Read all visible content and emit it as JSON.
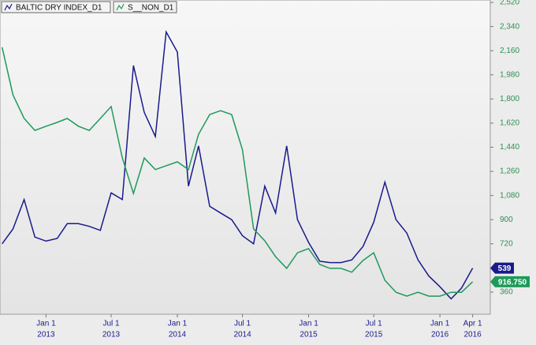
{
  "chart_data": {
    "type": "line",
    "x": [
      "2012-09-01",
      "2012-10-01",
      "2012-11-01",
      "2012-12-01",
      "2013-01-01",
      "2013-02-01",
      "2013-03-01",
      "2013-04-01",
      "2013-05-01",
      "2013-06-01",
      "2013-07-01",
      "2013-08-01",
      "2013-09-01",
      "2013-10-01",
      "2013-11-01",
      "2013-12-01",
      "2014-01-01",
      "2014-02-01",
      "2014-03-01",
      "2014-04-01",
      "2014-05-01",
      "2014-06-01",
      "2014-07-01",
      "2014-08-01",
      "2014-09-01",
      "2014-10-01",
      "2014-11-01",
      "2014-12-01",
      "2015-01-01",
      "2015-02-01",
      "2015-03-01",
      "2015-04-01",
      "2015-05-01",
      "2015-06-01",
      "2015-07-01",
      "2015-08-01",
      "2015-09-01",
      "2015-10-01",
      "2015-11-01",
      "2015-12-01",
      "2016-01-01",
      "2016-02-01",
      "2016-03-01",
      "2016-04-01"
    ],
    "series": [
      {
        "name": "BALTIC DRY INDEX_D1",
        "color": "#1a1a8c",
        "values": [
          720,
          830,
          1050,
          770,
          740,
          760,
          870,
          870,
          850,
          820,
          1100,
          1050,
          2050,
          1700,
          1520,
          2300,
          2150,
          1150,
          1450,
          1000,
          950,
          900,
          780,
          720,
          1150,
          950,
          1450,
          900,
          730,
          590,
          580,
          580,
          600,
          700,
          880,
          1180,
          900,
          800,
          600,
          480,
          400,
          310,
          390,
          539
        ],
        "value_labels": [
          null,
          null,
          null,
          null,
          null,
          null,
          null,
          null,
          null,
          null,
          null,
          null,
          null,
          null,
          null,
          null,
          null,
          null,
          null,
          null,
          null,
          null,
          null,
          null,
          null,
          null,
          null,
          null,
          null,
          null,
          null,
          null,
          null,
          null,
          null,
          null,
          null,
          null,
          null,
          null,
          null,
          null,
          null,
          "539"
        ]
      },
      {
        "name": "S__NON_D1",
        "color": "#1e9a5a",
        "axis": "y2",
        "values": [
          1760,
          1589,
          1504,
          1461,
          1476,
          1490,
          1504,
          1476,
          1461,
          1504,
          1547,
          1362,
          1234,
          1362,
          1320,
          1334,
          1348,
          1320,
          1447,
          1518,
          1532,
          1518,
          1391,
          1107,
          1064,
          1007,
          965,
          1021,
          1036,
          979,
          965,
          965,
          951,
          993,
          1021,
          922,
          879,
          865,
          879,
          865,
          865,
          879,
          879,
          916.75
        ],
        "value_labels": [
          null,
          null,
          null,
          null,
          null,
          null,
          null,
          null,
          null,
          null,
          null,
          null,
          null,
          null,
          null,
          null,
          null,
          null,
          null,
          null,
          null,
          null,
          null,
          null,
          null,
          null,
          null,
          null,
          null,
          null,
          null,
          null,
          null,
          null,
          null,
          null,
          null,
          null,
          null,
          null,
          null,
          null,
          null,
          "916.750"
        ]
      }
    ],
    "xlim": [
      "2012-08-26",
      "2016-05-20"
    ],
    "xticks": [
      {
        "value": "2013-01-01",
        "label": [
          "Jan 1",
          "2013"
        ]
      },
      {
        "value": "2013-07-01",
        "label": [
          "Jul 1",
          "2013"
        ]
      },
      {
        "value": "2014-01-01",
        "label": [
          "Jan 1",
          "2014"
        ]
      },
      {
        "value": "2014-07-01",
        "label": [
          "Jul 1",
          "2014"
        ]
      },
      {
        "value": "2015-01-01",
        "label": [
          "Jan 1",
          "2015"
        ]
      },
      {
        "value": "2015-07-01",
        "label": [
          "Jul 1",
          "2015"
        ]
      },
      {
        "value": "2016-01-01",
        "label": [
          "Jan 1",
          "2016"
        ]
      },
      {
        "value": "2016-04-01",
        "label": [
          "Apr 1",
          "2016"
        ]
      }
    ],
    "ylim": [
      195,
      2538
    ],
    "yticks": [
      {
        "value": 2520,
        "label": "2,520"
      },
      {
        "value": 2340,
        "label": "2,340"
      },
      {
        "value": 2160,
        "label": "2,160"
      },
      {
        "value": 1980,
        "label": "1,980"
      },
      {
        "value": 1800,
        "label": "1,800"
      },
      {
        "value": 1620,
        "label": "1,620"
      },
      {
        "value": 1440,
        "label": "1,440"
      },
      {
        "value": 1260,
        "label": "1,260"
      },
      {
        "value": 1080,
        "label": "1,080"
      },
      900,
      720,
      360
    ],
    "y2lim": [
      800,
      1930
    ]
  }
}
